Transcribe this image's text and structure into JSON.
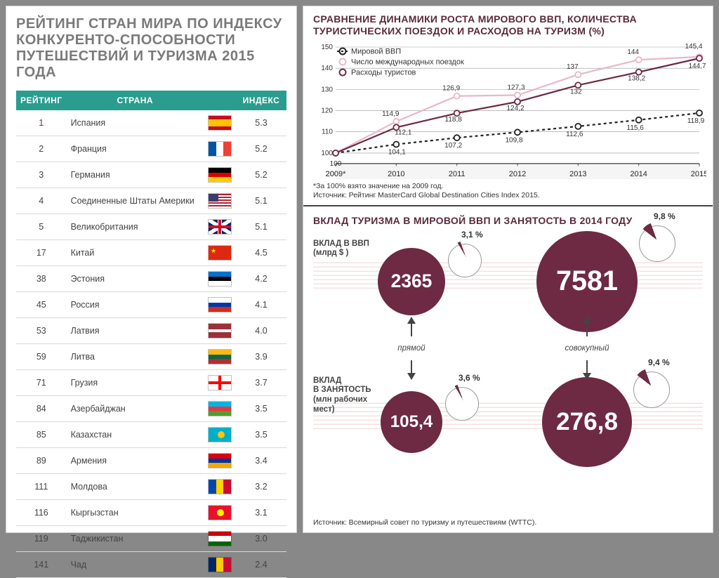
{
  "left": {
    "title": "РЕЙТИНГ СТРАН МИРА ПО ИНДЕКСУ КОНКУРЕНТО-СПОСОБНОСТИ ПУТЕШЕСТВИЙ И ТУРИЗМА 2015 ГОДА",
    "head": {
      "rank": "РЕЙТИНГ",
      "country": "СТРАНА",
      "index": "ИНДЕКС"
    },
    "header_bg": "#2a9d8f",
    "rows": [
      {
        "rank": "1",
        "country": "Испания",
        "index": "5.3",
        "flag": "es"
      },
      {
        "rank": "2",
        "country": "Франция",
        "index": "5.2",
        "flag": "fr"
      },
      {
        "rank": "3",
        "country": "Германия",
        "index": "5.2",
        "flag": "de"
      },
      {
        "rank": "4",
        "country": "Соединенные Штаты Америки",
        "index": "5.1",
        "flag": "us"
      },
      {
        "rank": "5",
        "country": "Великобритания",
        "index": "5.1",
        "flag": "gb"
      },
      {
        "rank": "17",
        "country": "Китай",
        "index": "4.5",
        "flag": "cn"
      },
      {
        "rank": "38",
        "country": "Эстония",
        "index": "4.2",
        "flag": "ee"
      },
      {
        "rank": "45",
        "country": "Россия",
        "index": "4.1",
        "flag": "ru"
      },
      {
        "rank": "53",
        "country": "Латвия",
        "index": "4.0",
        "flag": "lv"
      },
      {
        "rank": "59",
        "country": "Литва",
        "index": "3.9",
        "flag": "lt"
      },
      {
        "rank": "71",
        "country": "Грузия",
        "index": "3.7",
        "flag": "ge"
      },
      {
        "rank": "84",
        "country": "Азербайджан",
        "index": "3.5",
        "flag": "az"
      },
      {
        "rank": "85",
        "country": "Казахстан",
        "index": "3.5",
        "flag": "kz"
      },
      {
        "rank": "89",
        "country": "Армения",
        "index": "3.4",
        "flag": "am"
      },
      {
        "rank": "111",
        "country": "Молдова",
        "index": "3.2",
        "flag": "md"
      },
      {
        "rank": "116",
        "country": "Кыргызстан",
        "index": "3.1",
        "flag": "kg"
      },
      {
        "rank": "119",
        "country": "Таджикистан",
        "index": "3.0",
        "flag": "tj"
      },
      {
        "rank": "141",
        "country": "Чад",
        "index": "2.4",
        "flag": "td"
      }
    ]
  },
  "chart": {
    "title": "СРАВНЕНИЕ ДИНАМИКИ РОСТА МИРОВОГО ВВП, КОЛИЧЕСТВА ТУРИСТИЧЕСКИХ ПОЕЗДОК И РАСХОДОВ НА ТУРИЗМ (%)",
    "footnote1": "*За 100% взято значение на 2009 год.",
    "footnote2": "Источник: Рейтинг MasterCard Global Destination Cities Index 2015.",
    "x": [
      "2009*",
      "2010",
      "2011",
      "2012",
      "2013",
      "2014",
      "2015"
    ],
    "ylim": [
      95,
      150
    ],
    "yticks": [
      100,
      110,
      120,
      130,
      140,
      150
    ],
    "series": [
      {
        "name": "Мировой ВВП",
        "color": "#222222",
        "dash": "4,4",
        "marker_fill": "#ffffff",
        "marker_stroke": "#222222",
        "values": [
          100,
          104.1,
          107.2,
          109.8,
          112.6,
          115.6,
          118.9
        ],
        "label_offsets": [
          [
            0,
            18
          ],
          [
            1,
            14
          ],
          [
            -5,
            14
          ],
          [
            -5,
            14
          ],
          [
            -5,
            14
          ],
          [
            -5,
            14
          ],
          [
            -5,
            14
          ]
        ]
      },
      {
        "name": "Число международных поездок",
        "color": "#e8b8c8",
        "dash": "",
        "marker_fill": "#ffffff",
        "marker_stroke": "#e8b8c8",
        "values": [
          100,
          114.9,
          126.9,
          127.3,
          137.0,
          144.0,
          145.4
        ],
        "label_offsets": [
          null,
          [
            -8,
            -8
          ],
          [
            -8,
            -8
          ],
          [
            -2,
            -8
          ],
          [
            -8,
            -8
          ],
          [
            -8,
            -8
          ],
          [
            -8,
            -12
          ]
        ]
      },
      {
        "name": "Расходы туристов",
        "color": "#6d2a42",
        "dash": "",
        "marker_fill": "#ffffff",
        "marker_stroke": "#6d2a42",
        "values": [
          100,
          112.1,
          118.8,
          124.2,
          132.0,
          138.2,
          144.7
        ],
        "label_offsets": [
          null,
          [
            10,
            10
          ],
          [
            -5,
            12
          ],
          [
            -3,
            12
          ],
          [
            -3,
            12
          ],
          [
            -3,
            12
          ],
          [
            -3,
            14
          ]
        ]
      }
    ],
    "type": "line",
    "line_width": 2.2,
    "grid_color": "#999999",
    "background": "#ffffff",
    "label_fontsize": 10
  },
  "contrib": {
    "title": "ВКЛАД ТУРИЗМА В МИРОВОЙ ВВП И ЗАНЯТОСТЬ В 2014 ГОДУ",
    "source": "Источник: Всемирный совет по туризму и путешествиям (WTTC).",
    "gdp_label": "ВКЛАД В ВВП\n(млрд $ )",
    "emp_label": "ВКЛАД\nВ ЗАНЯТОСТЬ\n(млн рабочих\nмест)",
    "direct_label": "прямой",
    "total_label": "совокупный",
    "circle_color": "#6d2a42",
    "gdp_direct": {
      "value": "2365",
      "pct": "3,1 %",
      "radius": 48
    },
    "gdp_total": {
      "value": "7581",
      "pct": "9,8 %",
      "radius": 72
    },
    "emp_direct": {
      "value": "105,4",
      "pct": "3,6 %",
      "radius": 44
    },
    "emp_total": {
      "value": "276,8",
      "pct": "9,4 %",
      "radius": 64
    }
  }
}
